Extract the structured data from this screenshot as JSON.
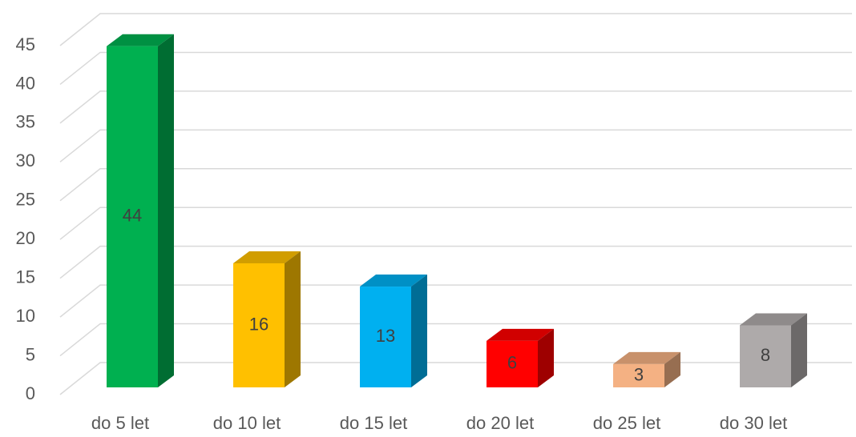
{
  "chart_data": {
    "type": "bar",
    "categories": [
      "do 5 let",
      "do 10 let",
      "do 15 let",
      "do 20 let",
      "do 25 let",
      "do 30 let"
    ],
    "values": [
      44,
      16,
      13,
      6,
      3,
      8
    ],
    "colors": [
      "#00b050",
      "#ffc000",
      "#00b0f0",
      "#ff0000",
      "#f4b183",
      "#aeaaaa"
    ],
    "ylim": [
      0,
      45
    ],
    "yticks": [
      0,
      5,
      10,
      15,
      20,
      25,
      30,
      35,
      40,
      45
    ],
    "grid": true
  }
}
